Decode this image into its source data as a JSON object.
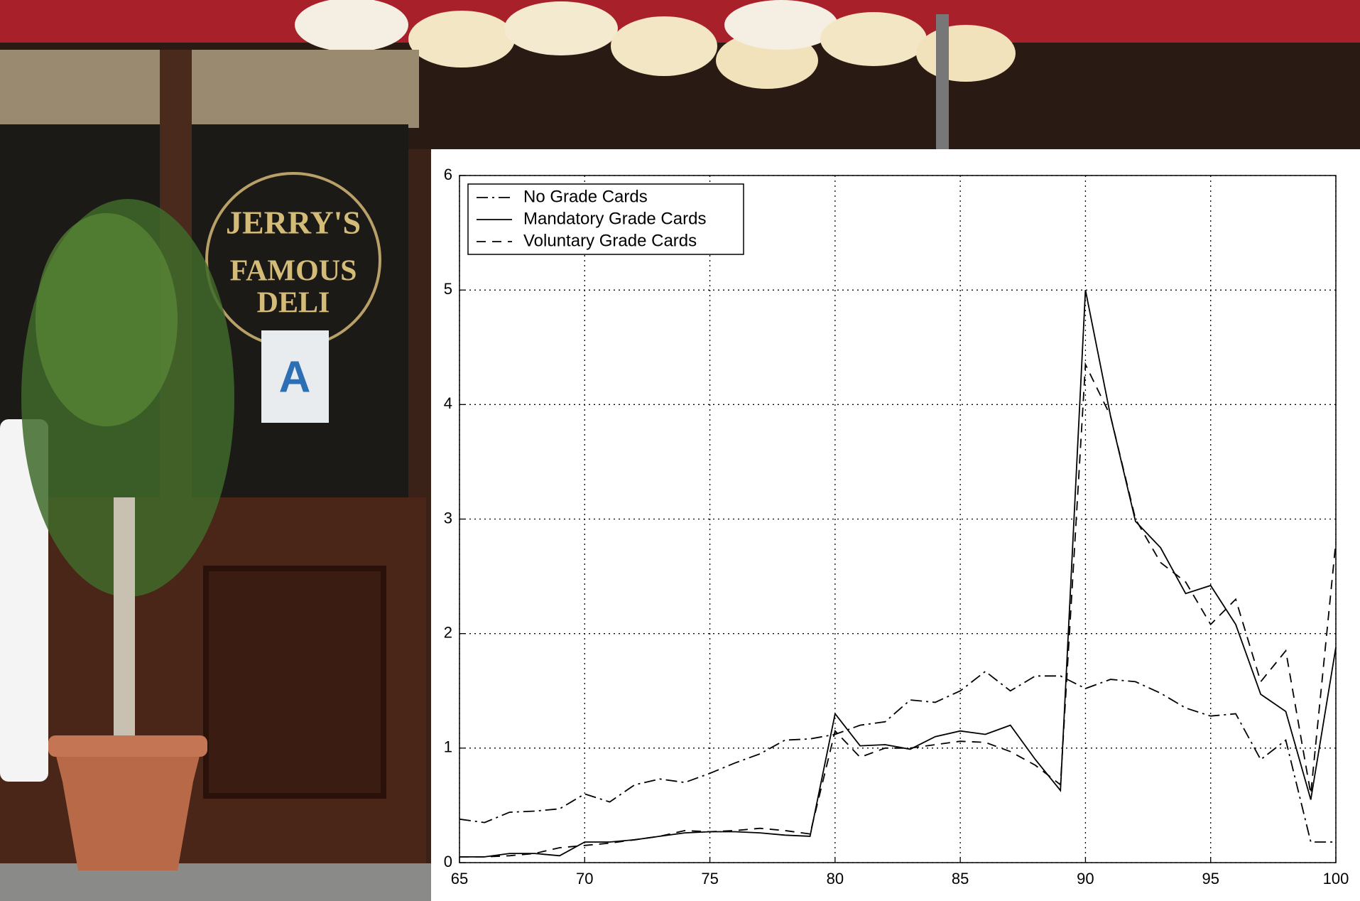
{
  "background_signs": [
    "JERRY'S",
    "FAMOUS",
    "DELI",
    "A"
  ],
  "chart_data": {
    "type": "line",
    "x": [
      65,
      66,
      67,
      68,
      69,
      70,
      71,
      72,
      73,
      74,
      75,
      76,
      77,
      78,
      79,
      80,
      81,
      82,
      83,
      84,
      85,
      86,
      87,
      88,
      89,
      90,
      91,
      92,
      93,
      94,
      95,
      96,
      97,
      98,
      99,
      100
    ],
    "series": [
      {
        "name": "No Grade Cards",
        "color": "#000000",
        "style": "dashdot",
        "values": [
          0.38,
          0.35,
          0.44,
          0.45,
          0.47,
          0.6,
          0.53,
          0.68,
          0.73,
          0.7,
          0.78,
          0.87,
          0.95,
          1.07,
          1.08,
          1.12,
          1.2,
          1.23,
          1.42,
          1.4,
          1.5,
          1.67,
          1.5,
          1.63,
          1.63,
          1.52,
          1.6,
          1.58,
          1.48,
          1.35,
          1.28,
          1.3,
          0.9,
          1.07,
          0.18,
          0.18
        ]
      },
      {
        "name": "Mandatory Grade Cards",
        "color": "#000000",
        "style": "solid",
        "values": [
          0.05,
          0.05,
          0.08,
          0.08,
          0.06,
          0.18,
          0.18,
          0.2,
          0.23,
          0.26,
          0.27,
          0.27,
          0.26,
          0.24,
          0.23,
          1.3,
          1.02,
          1.03,
          0.99,
          1.1,
          1.15,
          1.12,
          1.2,
          0.9,
          0.63,
          5.0,
          3.9,
          2.98,
          2.75,
          2.35,
          2.42,
          2.08,
          1.47,
          1.32,
          0.55,
          1.88
        ]
      },
      {
        "name": "Voluntary Grade Cards",
        "color": "#000000",
        "style": "dashed",
        "values": [
          0.05,
          0.05,
          0.06,
          0.08,
          0.13,
          0.15,
          0.17,
          0.2,
          0.23,
          0.28,
          0.27,
          0.28,
          0.3,
          0.28,
          0.25,
          1.15,
          0.92,
          1.0,
          1.0,
          1.03,
          1.06,
          1.05,
          0.97,
          0.85,
          0.68,
          4.35,
          3.9,
          3.0,
          2.62,
          2.45,
          2.08,
          2.3,
          1.58,
          1.85,
          0.6,
          2.8
        ]
      }
    ],
    "xlim": [
      65,
      100
    ],
    "xticks": [
      65,
      70,
      75,
      80,
      85,
      90,
      95,
      100
    ],
    "ylim": [
      0,
      6
    ],
    "yticks": [
      0,
      1,
      2,
      3,
      4,
      5,
      6
    ],
    "grid": true,
    "legend": "upper left"
  }
}
